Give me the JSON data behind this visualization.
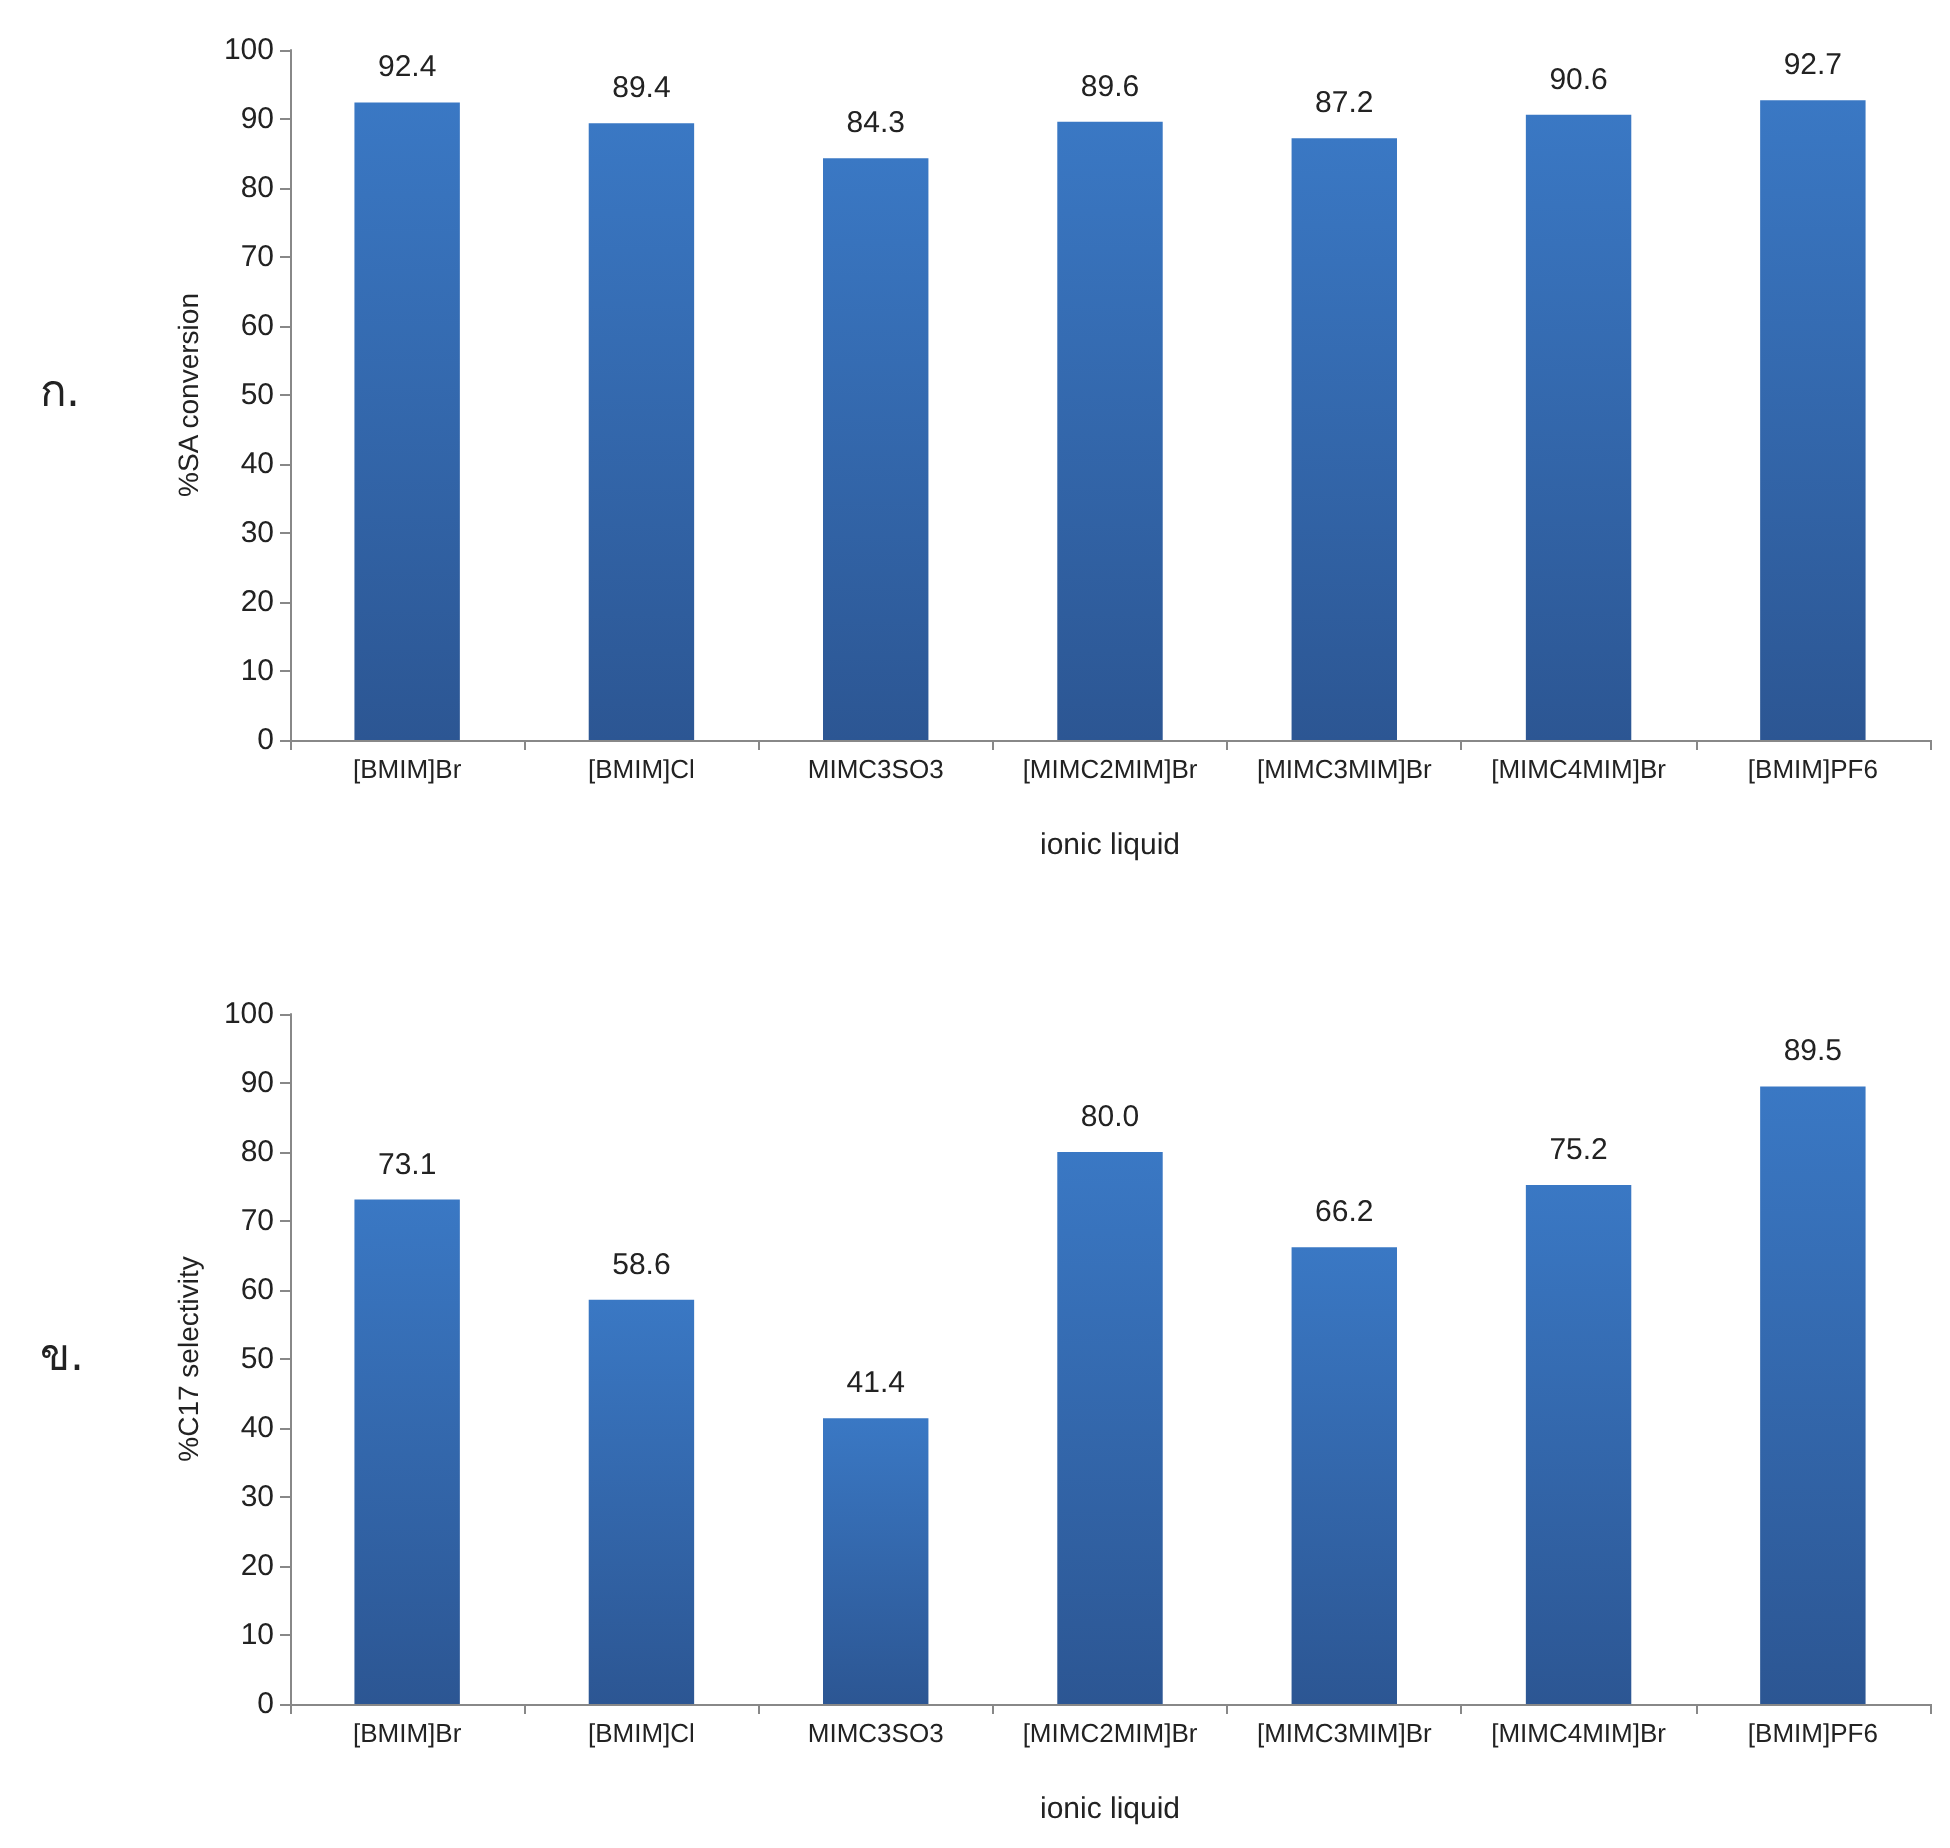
{
  "chart_data": [
    {
      "type": "bar",
      "xlabel": "ionic liquid",
      "ylabel": "%SA conversion",
      "annotations": [
        "ก."
      ],
      "categories": [
        "[BMIM]Br",
        "[BMIM]Cl",
        "MIMC3SO3",
        "[MIMC2MIM]Br",
        "[MIMC3MIM]Br",
        "[MIMC4MIM]Br",
        "[BMIM]PF6"
      ],
      "color": "#3a78c4",
      "values": [
        92.4,
        89.4,
        84.3,
        89.6,
        87.2,
        90.6,
        92.7
      ],
      "ylim": [
        0,
        100
      ],
      "yticks": [
        0,
        10,
        20,
        30,
        40,
        50,
        60,
        70,
        80,
        90,
        100
      ],
      "grid": false,
      "data_labels": true
    },
    {
      "type": "bar",
      "xlabel": "ionic liquid",
      "ylabel": "%C17 selectivity",
      "annotations": [
        "ข."
      ],
      "categories": [
        "[BMIM]Br",
        "[BMIM]Cl",
        "MIMC3SO3",
        "[MIMC2MIM]Br",
        "[MIMC3MIM]Br",
        "[MIMC4MIM]Br",
        "[BMIM]PF6"
      ],
      "color": "#3a78c4",
      "values": [
        73.1,
        58.6,
        41.4,
        80.0,
        66.2,
        75.2,
        89.5
      ],
      "value_labels": [
        "73.1",
        "58.6",
        "41.4",
        "80.0",
        "66.2",
        "75.2",
        "89.5"
      ],
      "ylim": [
        0,
        100
      ],
      "yticks": [
        0,
        10,
        20,
        30,
        40,
        50,
        60,
        70,
        80,
        90,
        100
      ],
      "grid": false
    }
  ]
}
